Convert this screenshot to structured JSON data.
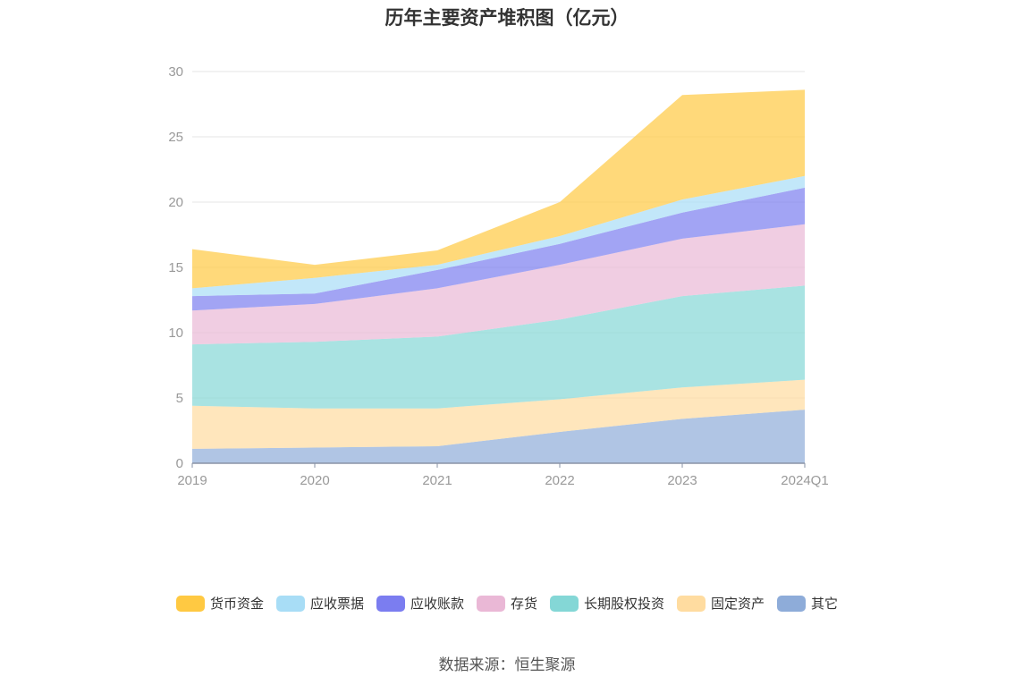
{
  "chart_data": {
    "type": "area",
    "stacked": true,
    "title": "历年主要资产堆积图（亿元）",
    "categories": [
      "2019",
      "2020",
      "2021",
      "2022",
      "2023",
      "2024Q1"
    ],
    "ylim": [
      0,
      30
    ],
    "yticks": [
      0,
      5,
      10,
      15,
      20,
      25,
      30
    ],
    "grid": true,
    "legend_position": "bottom",
    "series": [
      {
        "name": "其它",
        "color": "#8EACD9",
        "values": [
          1.1,
          1.2,
          1.3,
          2.4,
          3.4,
          4.1
        ]
      },
      {
        "name": "固定资产",
        "color": "#FFDCA0",
        "values": [
          3.3,
          3.0,
          2.9,
          2.5,
          2.4,
          2.3
        ]
      },
      {
        "name": "长期股权投资",
        "color": "#84D7D6",
        "values": [
          4.7,
          5.1,
          5.5,
          6.1,
          7.0,
          7.2
        ]
      },
      {
        "name": "存货",
        "color": "#EAB8D6",
        "values": [
          2.6,
          2.9,
          3.7,
          4.2,
          4.4,
          4.7
        ]
      },
      {
        "name": "应收账款",
        "color": "#7B7DF0",
        "values": [
          1.1,
          0.8,
          1.4,
          1.6,
          2.0,
          2.8
        ]
      },
      {
        "name": "应收票据",
        "color": "#A8DDF6",
        "values": [
          0.6,
          1.2,
          0.4,
          0.6,
          1.0,
          0.9
        ]
      },
      {
        "name": "货币资金",
        "color": "#FFC942",
        "values": [
          3.0,
          1.0,
          1.1,
          2.6,
          8.0,
          6.6
        ]
      }
    ],
    "legend_order": [
      "货币资金",
      "应收票据",
      "应收账款",
      "存货",
      "长期股权投资",
      "固定资产",
      "其它"
    ]
  },
  "source_text": "数据来源：恒生聚源"
}
